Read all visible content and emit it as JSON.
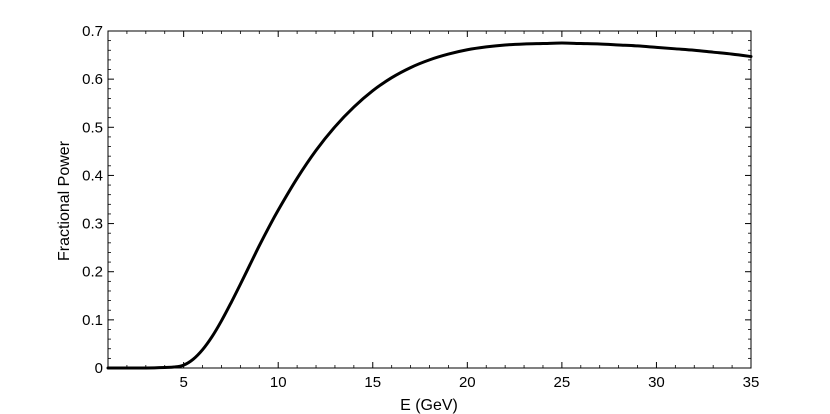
{
  "chart_data": {
    "type": "line",
    "title": "",
    "xlabel": "E (GeV)",
    "ylabel": "Fractional Power",
    "xlim": [
      1,
      35
    ],
    "ylim": [
      0,
      0.7
    ],
    "xticks": [
      5,
      10,
      15,
      20,
      25,
      30,
      35
    ],
    "yticks": [
      0,
      0.1,
      0.2,
      0.3,
      0.4,
      0.5,
      0.6,
      0.7
    ],
    "grid": false,
    "line_color": "#000000",
    "series": [
      {
        "x": [
          1,
          2,
          3,
          4,
          4.5,
          5,
          5.5,
          6,
          6.5,
          7,
          7.5,
          8,
          8.5,
          9,
          9.5,
          10,
          11,
          12,
          13,
          14,
          15,
          16,
          17,
          18,
          19,
          20,
          21,
          22,
          23,
          24,
          25,
          26,
          27,
          28,
          29,
          30,
          31,
          32,
          33,
          34,
          35
        ],
        "y": [
          0,
          0,
          0,
          0.001,
          0.002,
          0.006,
          0.018,
          0.038,
          0.065,
          0.098,
          0.135,
          0.174,
          0.214,
          0.254,
          0.292,
          0.328,
          0.394,
          0.452,
          0.501,
          0.542,
          0.576,
          0.603,
          0.624,
          0.64,
          0.652,
          0.661,
          0.667,
          0.671,
          0.673,
          0.674,
          0.675,
          0.674,
          0.673,
          0.671,
          0.669,
          0.666,
          0.663,
          0.66,
          0.656,
          0.652,
          0.647
        ]
      }
    ]
  }
}
